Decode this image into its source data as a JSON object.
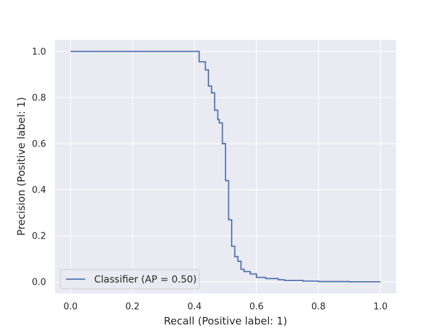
{
  "chart_data": {
    "type": "line",
    "title": "",
    "xlabel": "Recall (Positive label: 1)",
    "ylabel": "Precision (Positive label: 1)",
    "xlim": [
      -0.05,
      1.05
    ],
    "ylim": [
      -0.05,
      1.05
    ],
    "xticks": [
      0.0,
      0.2,
      0.4,
      0.6,
      0.8,
      1.0
    ],
    "yticks": [
      0.0,
      0.2,
      0.4,
      0.6,
      0.8,
      1.0
    ],
    "xtick_labels": [
      "0.0",
      "0.2",
      "0.4",
      "0.6",
      "0.8",
      "1.0"
    ],
    "ytick_labels": [
      "0.0",
      "0.2",
      "0.4",
      "0.6",
      "0.8",
      "1.0"
    ],
    "grid": true,
    "legend_position": "lower-left",
    "series": [
      {
        "name": "Classifier (AP = 0.50)",
        "color": "#4c72b0",
        "drawstyle": "steps-post",
        "points": [
          [
            0.0,
            1.0
          ],
          [
            0.415,
            1.0
          ],
          [
            0.415,
            0.955
          ],
          [
            0.435,
            0.955
          ],
          [
            0.435,
            0.92
          ],
          [
            0.445,
            0.92
          ],
          [
            0.445,
            0.85
          ],
          [
            0.455,
            0.85
          ],
          [
            0.455,
            0.82
          ],
          [
            0.465,
            0.82
          ],
          [
            0.465,
            0.745
          ],
          [
            0.475,
            0.745
          ],
          [
            0.475,
            0.705
          ],
          [
            0.48,
            0.705
          ],
          [
            0.48,
            0.69
          ],
          [
            0.49,
            0.69
          ],
          [
            0.49,
            0.6
          ],
          [
            0.5,
            0.6
          ],
          [
            0.5,
            0.44
          ],
          [
            0.51,
            0.44
          ],
          [
            0.51,
            0.27
          ],
          [
            0.52,
            0.27
          ],
          [
            0.52,
            0.155
          ],
          [
            0.53,
            0.155
          ],
          [
            0.53,
            0.11
          ],
          [
            0.54,
            0.11
          ],
          [
            0.54,
            0.09
          ],
          [
            0.55,
            0.09
          ],
          [
            0.55,
            0.055
          ],
          [
            0.56,
            0.055
          ],
          [
            0.56,
            0.045
          ],
          [
            0.58,
            0.045
          ],
          [
            0.58,
            0.035
          ],
          [
            0.6,
            0.035
          ],
          [
            0.6,
            0.02
          ],
          [
            0.63,
            0.02
          ],
          [
            0.63,
            0.015
          ],
          [
            0.67,
            0.015
          ],
          [
            0.67,
            0.01
          ],
          [
            0.69,
            0.01
          ],
          [
            0.69,
            0.007
          ],
          [
            0.75,
            0.007
          ],
          [
            0.75,
            0.004
          ],
          [
            0.8,
            0.004
          ],
          [
            0.8,
            0.002
          ],
          [
            0.9,
            0.002
          ],
          [
            0.9,
            0.001
          ],
          [
            1.0,
            0.001
          ]
        ]
      }
    ]
  }
}
